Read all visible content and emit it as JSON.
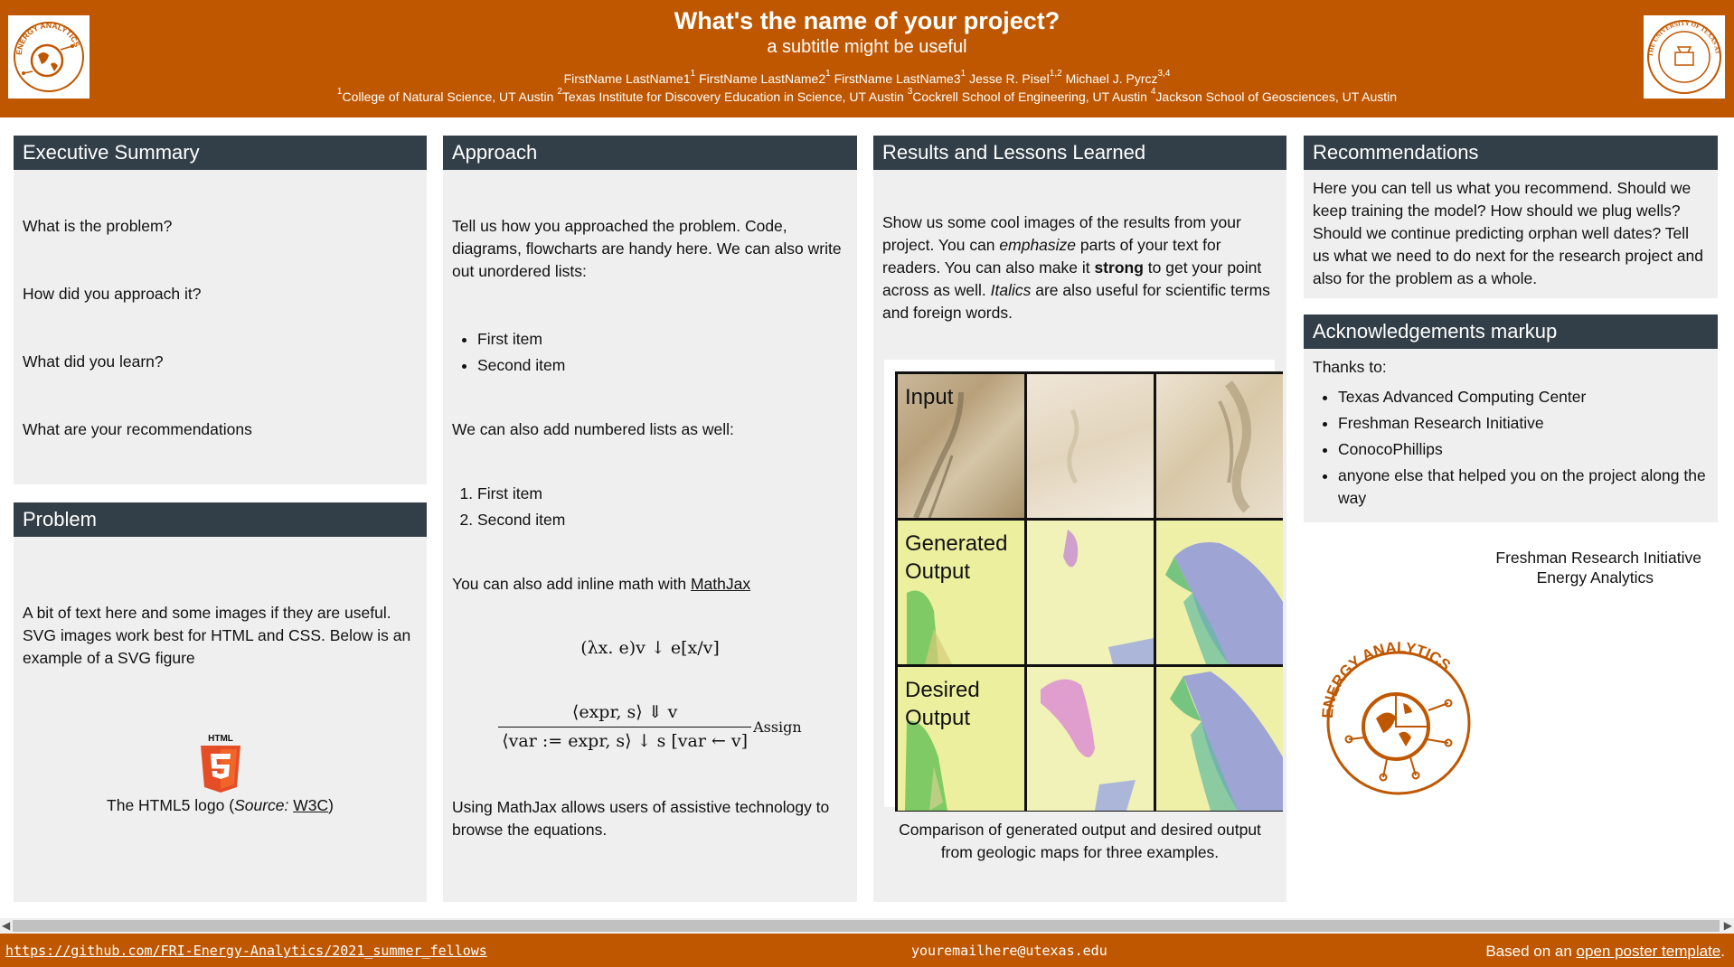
{
  "header": {
    "title": "What's the name of your project?",
    "subtitle": "a subtitle might be useful",
    "authors": [
      {
        "name": "FirstName LastName1",
        "sup": "1"
      },
      {
        "name": "FirstName LastName2",
        "sup": "1"
      },
      {
        "name": "FirstName LastName3",
        "sup": "1"
      },
      {
        "name": "Jesse R. Pisel",
        "sup": "1,2"
      },
      {
        "name": "Michael J. Pyrcz",
        "sup": "3,4"
      }
    ],
    "affiliations": [
      {
        "sup": "1",
        "name": "College of Natural Science, UT Austin"
      },
      {
        "sup": "2",
        "name": "Texas Institute for Discovery Education in Science, UT Austin"
      },
      {
        "sup": "3",
        "name": "Cockrell School of Engineering, UT Austin"
      },
      {
        "sup": "4",
        "name": "Jackson School of Geosciences, UT Austin"
      }
    ],
    "left_logo_text": "ENERGY ANALYTICS",
    "right_logo_text": "THE UNIVERSITY OF TEXAS AT AUSTIN"
  },
  "executive_summary": {
    "heading": "Executive Summary",
    "questions": [
      "What is the problem?",
      "How did you approach it?",
      "What did you learn?",
      "What are your recommendations"
    ]
  },
  "problem": {
    "heading": "Problem",
    "text": "A bit of text here and some images if they are useful. SVG images work best for HTML and CSS. Below is an example of a SVG figure",
    "logo_label": "HTML",
    "caption_prefix": "The HTML5 logo (",
    "caption_source": "Source:",
    "caption_link": "W3C",
    "caption_suffix": ")"
  },
  "approach": {
    "heading": "Approach",
    "intro": "Tell us how you approached the problem. Code, diagrams, flowcharts are handy here. We can also write out unordered lists:",
    "unordered": [
      "First item",
      "Second item"
    ],
    "numbered_intro": "We can also add numbered lists as well:",
    "ordered": [
      "First item",
      "Second item"
    ],
    "math_intro": "You can also add inline math with ",
    "math_link": "MathJax",
    "eq1": "(λx. e)v ↓ e[x/v]",
    "eq2_num": "⟨expr, s⟩ ⇓ v",
    "eq2_den": "⟨var := expr, s⟩ ↓ s [var ← v]",
    "eq2_rule": "Assign",
    "outro": "Using MathJax allows users of assistive technology to browse the equations."
  },
  "results": {
    "heading": "Results and Lessons Learned",
    "text_1": "Show us some cool images of the results from your project. You can ",
    "text_em": "emphasize",
    "text_2": " parts of your text for readers. You can also make it ",
    "text_strong": "strong",
    "text_3": " to get your point across as well. ",
    "text_italics": "Italics",
    "text_4": " are also useful for scientific terms and foreign words.",
    "row_labels": [
      "Input",
      "Generated Output",
      "Desired Output"
    ],
    "caption": "Comparison of generated output and desired output from geologic maps for three examples."
  },
  "recommendations": {
    "heading": "Recommendations",
    "text": "Here you can tell us what you recommend. Should we keep training the model? How should we plug wells? Should we continue predicting orphan well dates? Tell us what we need to do next for the research project and also for the problem as a whole."
  },
  "acknowledgements": {
    "heading": "Acknowledgements markup",
    "thanks": "Thanks to:",
    "items": [
      "Texas Advanced Computing Center",
      "Freshman Research Initiative",
      "ConocoPhillips",
      "anyone else that helped you on the project along the way"
    ]
  },
  "sidebar_text": [
    "Freshman Research Initiative",
    "Energy Analytics"
  ],
  "big_logo_text": "ENERGY ANALYTICS",
  "footer": {
    "github": "https://github.com/FRI-Energy-Analytics/2021_summer_fellows",
    "email": "youremailhere@utexas.edu",
    "based_prefix": "Based on an ",
    "based_link": "open poster template",
    "based_suffix": "."
  },
  "colors": {
    "ut_orange": "#bf5700",
    "panel_head": "#333f48",
    "panel_bg": "#efefef"
  }
}
